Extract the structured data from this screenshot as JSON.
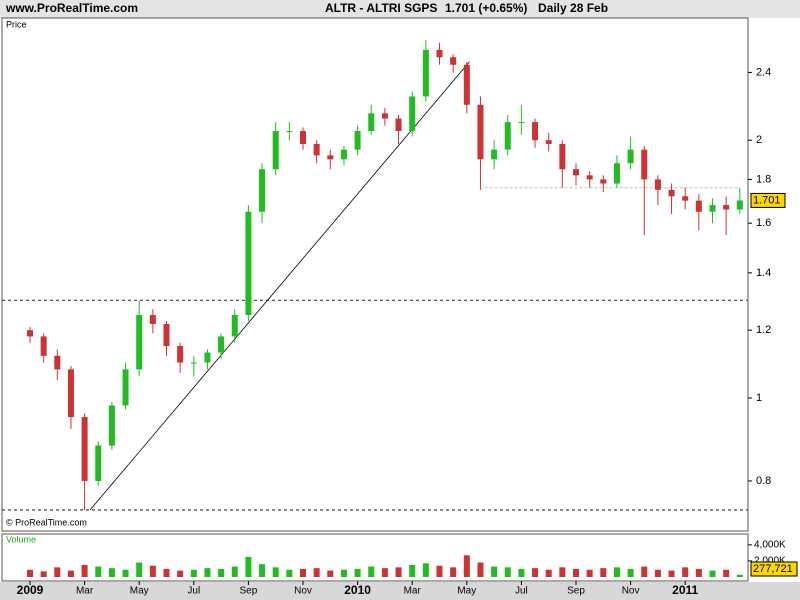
{
  "header": {
    "site": "www.ProRealTime.com",
    "symbol": "ALTR - ALTRI SGPS",
    "quote": "1.701 (+0.65%)",
    "period": "Daily  28 Feb"
  },
  "chart_data": [
    {
      "type": "candlestick",
      "label": "Price",
      "copyright": "© ProRealTime.com",
      "categories": [
        "2009",
        null,
        null,
        null,
        "Mar",
        null,
        null,
        null,
        "May",
        null,
        null,
        null,
        "Jul",
        null,
        null,
        null,
        "Sep",
        null,
        null,
        null,
        "Nov",
        null,
        null,
        null,
        "2010",
        null,
        null,
        null,
        "Mar",
        null,
        null,
        null,
        "May",
        null,
        null,
        null,
        "Jul",
        null,
        null,
        null,
        "Sep",
        null,
        null,
        null,
        "Nov",
        null,
        null,
        null,
        "2011",
        null,
        null,
        null,
        null
      ],
      "open": [
        1.2,
        1.18,
        1.12,
        1.08,
        0.95,
        0.8,
        0.88,
        0.98,
        1.08,
        1.25,
        1.22,
        1.15,
        1.1,
        1.1,
        1.13,
        1.18,
        1.25,
        1.65,
        1.85,
        2.05,
        2.05,
        1.98,
        1.92,
        1.9,
        1.95,
        2.05,
        2.15,
        2.12,
        2.05,
        2.25,
        2.55,
        2.5,
        2.45,
        2.2,
        1.9,
        1.95,
        2.1,
        2.1,
        2.0,
        1.98,
        1.85,
        1.82,
        1.8,
        1.78,
        1.88,
        1.95,
        1.8,
        1.75,
        1.72,
        1.7,
        1.65,
        1.68,
        1.66
      ],
      "high": [
        1.21,
        1.19,
        1.14,
        1.09,
        0.96,
        0.89,
        0.99,
        1.1,
        1.3,
        1.27,
        1.23,
        1.16,
        1.12,
        1.14,
        1.19,
        1.27,
        1.68,
        1.88,
        2.1,
        2.1,
        2.07,
        2.0,
        1.95,
        1.97,
        2.08,
        2.2,
        2.18,
        2.14,
        2.28,
        2.62,
        2.6,
        2.52,
        2.47,
        2.25,
        2.0,
        2.14,
        2.2,
        2.12,
        2.04,
        2.0,
        1.88,
        1.84,
        1.82,
        1.92,
        2.02,
        1.97,
        1.82,
        1.78,
        1.76,
        1.73,
        1.71,
        1.72,
        1.76
      ],
      "low": [
        1.16,
        1.1,
        1.05,
        0.92,
        0.74,
        0.79,
        0.87,
        0.97,
        1.06,
        1.19,
        1.12,
        1.07,
        1.06,
        1.08,
        1.11,
        1.16,
        1.23,
        1.6,
        1.82,
        2.0,
        1.95,
        1.88,
        1.85,
        1.87,
        1.92,
        2.03,
        2.08,
        1.98,
        2.02,
        2.22,
        2.45,
        2.4,
        2.15,
        1.75,
        1.85,
        1.92,
        2.03,
        1.96,
        1.94,
        1.76,
        1.77,
        1.76,
        1.74,
        1.76,
        1.85,
        1.55,
        1.68,
        1.64,
        1.66,
        1.57,
        1.6,
        1.55,
        1.64
      ],
      "close": [
        1.18,
        1.12,
        1.08,
        0.95,
        0.8,
        0.88,
        0.98,
        1.08,
        1.25,
        1.22,
        1.15,
        1.1,
        1.1,
        1.13,
        1.18,
        1.25,
        1.65,
        1.85,
        2.05,
        2.05,
        1.98,
        1.92,
        1.9,
        1.95,
        2.05,
        2.15,
        2.12,
        2.05,
        2.25,
        2.55,
        2.5,
        2.45,
        2.2,
        1.9,
        1.95,
        2.1,
        2.1,
        2.0,
        1.98,
        1.85,
        1.82,
        1.8,
        1.78,
        1.88,
        1.95,
        1.8,
        1.75,
        1.72,
        1.7,
        1.65,
        1.68,
        1.66,
        1.701
      ],
      "up_color": "#22bb22",
      "down_color": "#cc3333",
      "log_scale": true,
      "ylim": [
        0.73,
        2.69
      ],
      "yticks": [
        0.8,
        1,
        1.2,
        1.4,
        1.6,
        1.8,
        2,
        2.4
      ],
      "hlines": [
        1.3,
        0.74
      ],
      "support": {
        "from": 33.3,
        "to": 52,
        "value": 1.76
      },
      "trendline": {
        "x": [
          4.4,
          32.2
        ],
        "y": [
          0.74,
          2.47
        ]
      }
    },
    {
      "type": "bar",
      "label": "Volume",
      "values": [
        900000,
        700000,
        1200000,
        800000,
        1500000,
        1300000,
        1100000,
        900000,
        1800000,
        1400000,
        1000000,
        800000,
        900000,
        1100000,
        1000000,
        1300000,
        2500000,
        1600000,
        1200000,
        900000,
        1000000,
        1100000,
        800000,
        900000,
        1000000,
        1300000,
        1100000,
        1200000,
        1500000,
        1700000,
        1400000,
        1200000,
        2700000,
        1800000,
        1300000,
        1200000,
        1000000,
        1100000,
        900000,
        1200000,
        1000000,
        900000,
        1100000,
        1200000,
        1000000,
        1300000,
        900000,
        800000,
        1200000,
        1000000,
        800000,
        900000,
        277721
      ],
      "value_labels": [
        null,
        null,
        null,
        null,
        null,
        null,
        null,
        null,
        null,
        null,
        null,
        null,
        null,
        null,
        null,
        null,
        null,
        null,
        null,
        null,
        null,
        null,
        null,
        null,
        null,
        null,
        null,
        null,
        null,
        null,
        null,
        null,
        null,
        null,
        null,
        null,
        null,
        null,
        null,
        null,
        null,
        null,
        null,
        null,
        null,
        null,
        null,
        null,
        null,
        null,
        null,
        null,
        "277,721"
      ],
      "ylim": [
        0,
        5100000
      ],
      "yticks": [
        {
          "value": 2000000,
          "label": "2,000K"
        },
        {
          "value": 4000000,
          "label": "4,000K"
        }
      ]
    }
  ]
}
